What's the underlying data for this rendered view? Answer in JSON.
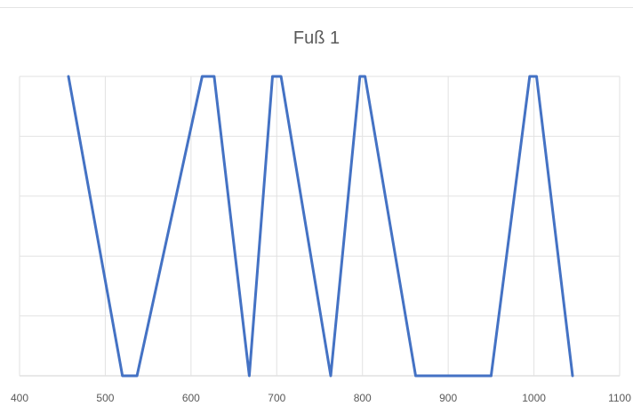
{
  "chart_data": {
    "type": "line",
    "title": "Fuß 1",
    "xlabel": "",
    "ylabel": "",
    "xlim": [
      400,
      1100
    ],
    "ylim": [
      0,
      5
    ],
    "x_ticks": [
      400,
      500,
      600,
      700,
      800,
      900,
      1000,
      1100
    ],
    "x_tick_labels": [
      "400",
      "500",
      "600",
      "700",
      "800",
      "900",
      "1000",
      "1100"
    ],
    "y_ticks": [
      0,
      1,
      2,
      3,
      4,
      5
    ],
    "grid": true,
    "legend": "none",
    "series": [
      {
        "color": "#4472c4",
        "x": [
          457,
          520,
          537,
          613,
          627,
          668,
          695,
          705,
          763,
          797,
          803,
          862,
          950,
          995,
          1003,
          1045
        ],
        "y": [
          5,
          0,
          0,
          5,
          5,
          0,
          5,
          5,
          0,
          5,
          5,
          0,
          0,
          5,
          5,
          0
        ]
      }
    ]
  }
}
